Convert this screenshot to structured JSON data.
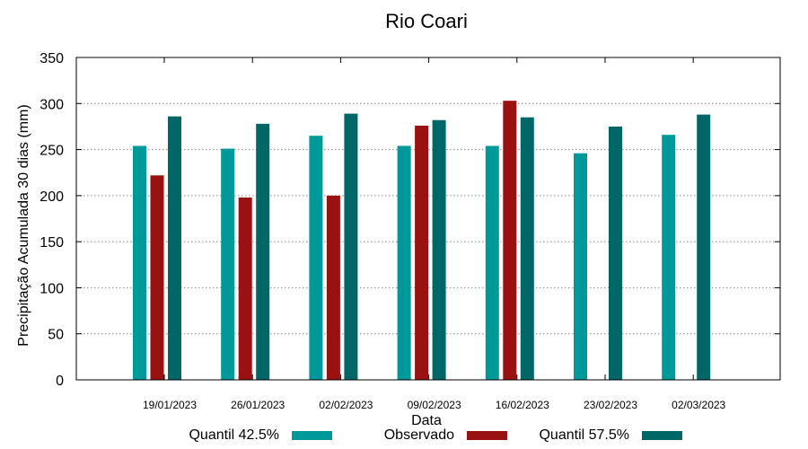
{
  "chart_data": {
    "type": "bar",
    "title": "Rio Coari",
    "xlabel": "Data",
    "ylabel": "Precipitação Acumulada 30 dias (mm)",
    "ylim": [
      0,
      350
    ],
    "yticks": [
      0,
      50,
      100,
      150,
      200,
      250,
      300,
      350
    ],
    "grid": true,
    "legend_position": "bottom",
    "categories": [
      "19/01/2023",
      "26/01/2023",
      "02/02/2023",
      "09/02/2023",
      "16/02/2023",
      "23/02/2023",
      "02/03/2023"
    ],
    "series": [
      {
        "name": "Quantil 42.5%",
        "color": "#009999",
        "values": [
          254,
          251,
          265,
          254,
          254,
          246,
          266
        ]
      },
      {
        "name": "Observado",
        "color": "#991111",
        "values": [
          222,
          198,
          200,
          276,
          303,
          null,
          null
        ]
      },
      {
        "name": "Quantil 57.5%",
        "color": "#006666",
        "values": [
          286,
          278,
          289,
          282,
          285,
          275,
          288
        ]
      }
    ]
  }
}
